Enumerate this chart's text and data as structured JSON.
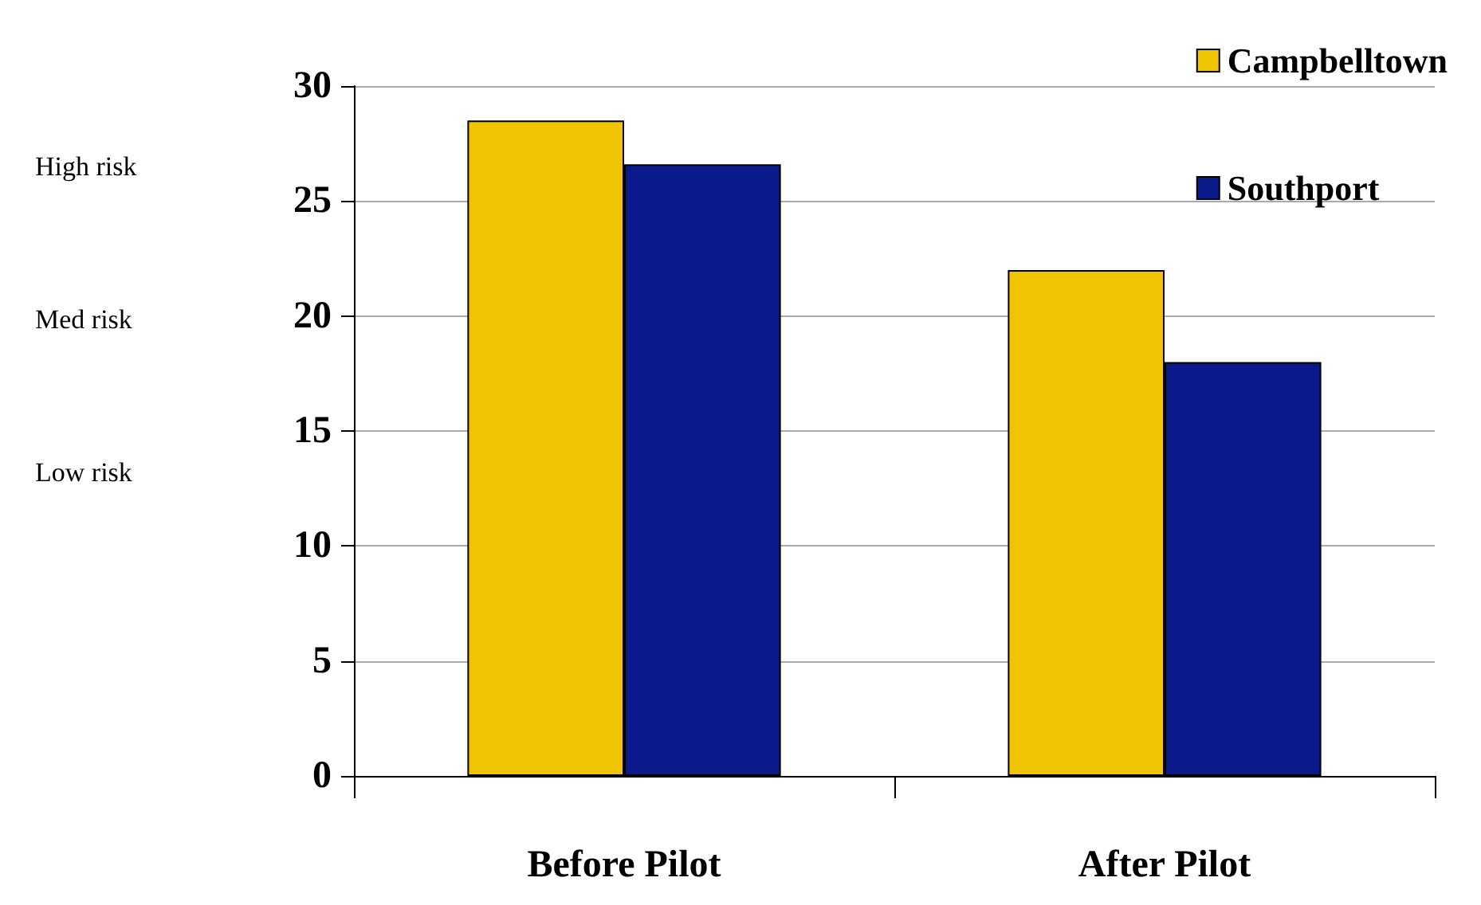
{
  "chart_data": {
    "type": "bar",
    "categories": [
      "Before Pilot",
      "After Pilot"
    ],
    "series": [
      {
        "name": "Campbelltown",
        "color": "#f0c400",
        "values": [
          28.5,
          22
        ]
      },
      {
        "name": "Southport",
        "color": "#0a1a8c",
        "values": [
          26.6,
          18
        ]
      }
    ],
    "ylim": [
      0,
      30
    ],
    "yticks": [
      0,
      5,
      10,
      15,
      20,
      25,
      30
    ],
    "grid": "y",
    "legend": "top right",
    "annotations": [
      "High risk",
      "Med risk",
      "Low risk"
    ]
  }
}
